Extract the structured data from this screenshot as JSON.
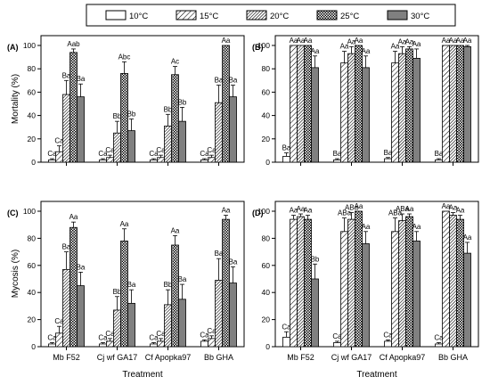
{
  "legend": [
    "10°C",
    "15°C",
    "20°C",
    "25°C",
    "30°C"
  ],
  "chart_data": [
    {
      "type": "bar",
      "panel_label": "(A)",
      "ylabel": "Mortality (%)",
      "xlabel": "",
      "ylim": [
        0,
        100
      ],
      "yticks": [
        0,
        20,
        40,
        60,
        80,
        100
      ],
      "categories": [
        "",
        "",
        "",
        ""
      ],
      "series": [
        {
          "name": "10°C",
          "values": [
            2,
            2,
            2,
            2
          ],
          "errors": [
            1,
            1,
            1,
            1
          ],
          "labels": [
            "Ca",
            "Ca",
            "Ca",
            "Ca"
          ]
        },
        {
          "name": "15°C",
          "values": [
            9,
            4,
            4,
            4
          ],
          "errors": [
            5,
            2,
            2,
            2
          ],
          "labels": [
            "Ca",
            "Ca",
            "Ca",
            "Ca"
          ]
        },
        {
          "name": "20°C",
          "values": [
            58,
            25,
            31,
            51
          ],
          "errors": [
            12,
            10,
            10,
            15
          ],
          "labels": [
            "Ba",
            "Bb",
            "Bb",
            "Ba"
          ]
        },
        {
          "name": "25°C",
          "values": [
            94,
            76,
            75,
            100
          ],
          "errors": [
            3,
            10,
            7,
            0
          ],
          "labels": [
            "Aab",
            "Abc",
            "Ac",
            "Aa"
          ]
        },
        {
          "name": "30°C",
          "values": [
            56,
            27,
            35,
            56
          ],
          "errors": [
            11,
            10,
            12,
            10
          ],
          "labels": [
            "Ba",
            "Bb",
            "Bb",
            "Ba"
          ]
        }
      ]
    },
    {
      "type": "bar",
      "panel_label": "(B)",
      "ylabel": "",
      "xlabel": "",
      "ylim": [
        0,
        100
      ],
      "yticks": [
        0,
        20,
        40,
        60,
        80,
        100
      ],
      "categories": [
        "",
        "",
        "",
        ""
      ],
      "series": [
        {
          "name": "10°C",
          "values": [
            5,
            2,
            3,
            2
          ],
          "errors": [
            3,
            1,
            1,
            1
          ],
          "labels": [
            "Ba",
            "Ba",
            "Ba",
            "Ba"
          ]
        },
        {
          "name": "15°C",
          "values": [
            100,
            85,
            85,
            100
          ],
          "errors": [
            0,
            10,
            10,
            0
          ],
          "labels": [
            "Aa",
            "Aa",
            "Aa",
            "Aa"
          ]
        },
        {
          "name": "20°C",
          "values": [
            100,
            93,
            93,
            100
          ],
          "errors": [
            0,
            6,
            6,
            0
          ],
          "labels": [
            "Aa",
            "Aa",
            "Aa",
            "Aa"
          ]
        },
        {
          "name": "25°C",
          "values": [
            100,
            100,
            97,
            100
          ],
          "errors": [
            0,
            0,
            2,
            0
          ],
          "labels": [
            "Aa",
            "Aa",
            "Aa",
            "Aa"
          ]
        },
        {
          "name": "30°C",
          "values": [
            81,
            81,
            89,
            99
          ],
          "errors": [
            10,
            10,
            8,
            1
          ],
          "labels": [
            "Aa",
            "Aa",
            "Aa",
            "Aa"
          ]
        }
      ]
    },
    {
      "type": "bar",
      "panel_label": "(C)",
      "ylabel": "Mycosis (%)",
      "xlabel": "Treatment",
      "ylim": [
        0,
        100
      ],
      "yticks": [
        0,
        20,
        40,
        60,
        80,
        100
      ],
      "categories": [
        "Mb F52",
        "Cj wf GA17",
        "Cf Apopka97",
        "Bb GHA"
      ],
      "series": [
        {
          "name": "10°C",
          "values": [
            2,
            2,
            2,
            4
          ],
          "errors": [
            1,
            1,
            1,
            1
          ],
          "labels": [
            "Ca",
            "Ca",
            "Ca",
            "Ca"
          ]
        },
        {
          "name": "15°C",
          "values": [
            10,
            4,
            4,
            6
          ],
          "errors": [
            5,
            2,
            2,
            2
          ],
          "labels": [
            "Ca",
            "Ca",
            "Ca",
            "Ca"
          ]
        },
        {
          "name": "20°C",
          "values": [
            57,
            27,
            31,
            49
          ],
          "errors": [
            13,
            10,
            11,
            16
          ],
          "labels": [
            "Ba",
            "Bb",
            "Bb",
            "Ba"
          ]
        },
        {
          "name": "25°C",
          "values": [
            88,
            78,
            75,
            94
          ],
          "errors": [
            4,
            9,
            7,
            3
          ],
          "labels": [
            "Aa",
            "Aa",
            "Aa",
            "Aa"
          ]
        },
        {
          "name": "30°C",
          "values": [
            45,
            32,
            35,
            47
          ],
          "errors": [
            10,
            10,
            11,
            12
          ],
          "labels": [
            "Ba",
            "Ba",
            "Ba",
            "Ba"
          ]
        }
      ]
    },
    {
      "type": "bar",
      "panel_label": "(D)",
      "ylabel": "",
      "xlabel": "Treatment",
      "ylim": [
        0,
        100
      ],
      "yticks": [
        0,
        20,
        40,
        60,
        80,
        100
      ],
      "categories": [
        "Mb F52",
        "Cj wf GA17",
        "Cf Apopka97",
        "Bb GHA"
      ],
      "series": [
        {
          "name": "10°C",
          "values": [
            7,
            3,
            4,
            2
          ],
          "errors": [
            4,
            1,
            1,
            1
          ],
          "labels": [
            "Ca",
            "Ca",
            "Ca",
            "Ca"
          ]
        },
        {
          "name": "15°C",
          "values": [
            94,
            85,
            85,
            100
          ],
          "errors": [
            3,
            10,
            10,
            0
          ],
          "labels": [
            "Aa",
            "ABa",
            "ABa",
            "Aa"
          ]
        },
        {
          "name": "20°C",
          "values": [
            96,
            94,
            93,
            97
          ],
          "errors": [
            2,
            5,
            5,
            2
          ],
          "labels": [
            "Aa",
            "ABa",
            "ABa",
            "Aa"
          ]
        },
        {
          "name": "25°C",
          "values": [
            94,
            100,
            96,
            94
          ],
          "errors": [
            3,
            0,
            2,
            3
          ],
          "labels": [
            "Aa",
            "Aa",
            "Aa",
            "Aa"
          ]
        },
        {
          "name": "30°C",
          "values": [
            50,
            76,
            78,
            69
          ],
          "errors": [
            11,
            9,
            7,
            8
          ],
          "labels": [
            "Bb",
            "Aa",
            "Aa",
            "Aa"
          ]
        }
      ]
    }
  ]
}
